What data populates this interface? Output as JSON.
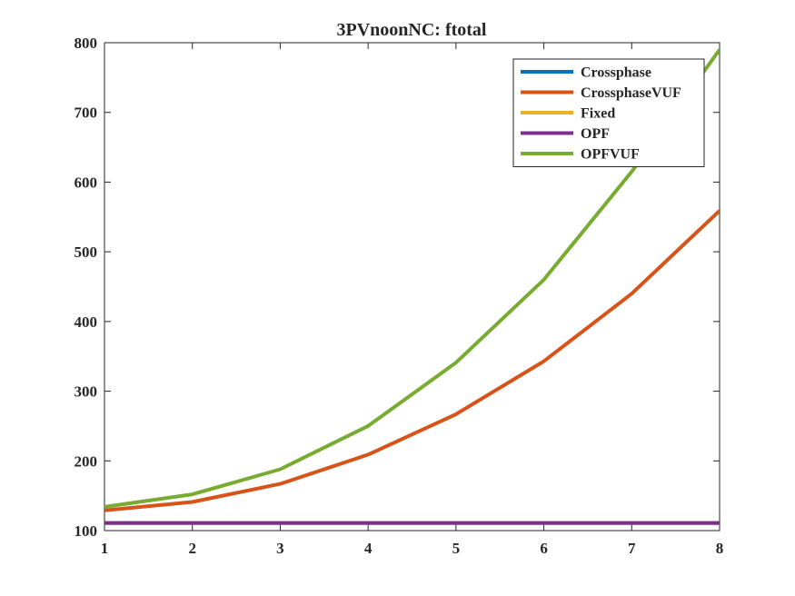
{
  "chart_data": {
    "type": "line",
    "title": "3PVnoonNC: ftotal",
    "xlabel": "",
    "ylabel": "",
    "x": [
      1,
      2,
      3,
      4,
      5,
      6,
      7,
      8
    ],
    "xlim": [
      1,
      8
    ],
    "ylim": [
      100,
      800
    ],
    "xticks": [
      "1",
      "2",
      "3",
      "4",
      "5",
      "6",
      "7",
      "8"
    ],
    "yticks": [
      "100",
      "200",
      "300",
      "400",
      "500",
      "600",
      "700",
      "800"
    ],
    "grid": false,
    "legend_position": "top-right",
    "series": [
      {
        "name": "Crossphase",
        "color": "#0072BD",
        "values": [
          111,
          111,
          111,
          111,
          111,
          111,
          111,
          111
        ]
      },
      {
        "name": "CrossphaseVUF",
        "color": "#D95319",
        "values": [
          129,
          141,
          167,
          209,
          267,
          343,
          440,
          559
        ]
      },
      {
        "name": "Fixed",
        "color": "#EDB120",
        "values": [
          111,
          111,
          111,
          111,
          111,
          111,
          111,
          111
        ]
      },
      {
        "name": "OPF",
        "color": "#7E2F8E",
        "values": [
          111,
          111,
          111,
          111,
          111,
          111,
          111,
          111
        ]
      },
      {
        "name": "OPFVUF",
        "color": "#77AC30",
        "values": [
          134,
          152,
          188,
          250,
          341,
          460,
          615,
          790
        ]
      }
    ]
  }
}
